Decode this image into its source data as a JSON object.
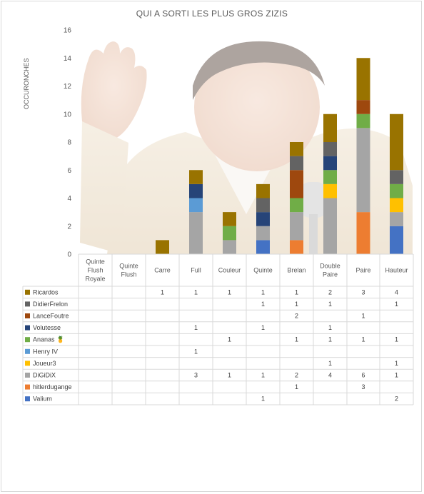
{
  "chart_data": {
    "type": "bar",
    "stacked": true,
    "title": "QUI A SORTI LES PLUS GROS ZIZIS",
    "ylabel": "OCCURONCHES",
    "ylim": [
      0,
      16
    ],
    "yticks": [
      0,
      2,
      4,
      6,
      8,
      10,
      12,
      14,
      16
    ],
    "categories": [
      "Quinte Flush Royale",
      "Quinte Flush",
      "Carre",
      "Full",
      "Couleur",
      "Quinte",
      "Brelan",
      "Double Paire",
      "Paire",
      "Hauteur"
    ],
    "legend": "data-table",
    "background_image": "photo of a smiling man in a suit waving",
    "series": [
      {
        "name": "Valium",
        "color": "#4472C4",
        "values": [
          null,
          null,
          null,
          null,
          null,
          1,
          null,
          null,
          null,
          2
        ]
      },
      {
        "name": "hitlerdugange",
        "color": "#ED7D31",
        "values": [
          null,
          null,
          null,
          null,
          null,
          null,
          1,
          null,
          3,
          null
        ]
      },
      {
        "name": "DiGiDiX",
        "color": "#A5A5A5",
        "values": [
          null,
          null,
          null,
          3,
          1,
          1,
          2,
          4,
          6,
          1
        ]
      },
      {
        "name": "Joueur3",
        "color": "#FFC000",
        "values": [
          null,
          null,
          null,
          null,
          null,
          null,
          null,
          1,
          null,
          1
        ]
      },
      {
        "name": "Henry IV",
        "color": "#5B9BD5",
        "values": [
          null,
          null,
          null,
          1,
          null,
          null,
          null,
          null,
          null,
          null
        ]
      },
      {
        "name": "Ananas 🍍",
        "color": "#70AD47",
        "values": [
          null,
          null,
          null,
          null,
          1,
          null,
          1,
          1,
          1,
          1
        ]
      },
      {
        "name": "Volutesse",
        "color": "#264478",
        "values": [
          null,
          null,
          null,
          1,
          null,
          1,
          null,
          1,
          null,
          null
        ]
      },
      {
        "name": "LanceFoutre",
        "color": "#9E480E",
        "values": [
          null,
          null,
          null,
          null,
          null,
          null,
          2,
          null,
          1,
          null
        ]
      },
      {
        "name": "DidierFrelon",
        "color": "#636363",
        "values": [
          null,
          null,
          null,
          null,
          null,
          1,
          1,
          1,
          null,
          1
        ]
      },
      {
        "name": "Ricardos",
        "color": "#997300",
        "values": [
          null,
          null,
          1,
          1,
          1,
          1,
          1,
          2,
          3,
          4
        ]
      }
    ]
  }
}
